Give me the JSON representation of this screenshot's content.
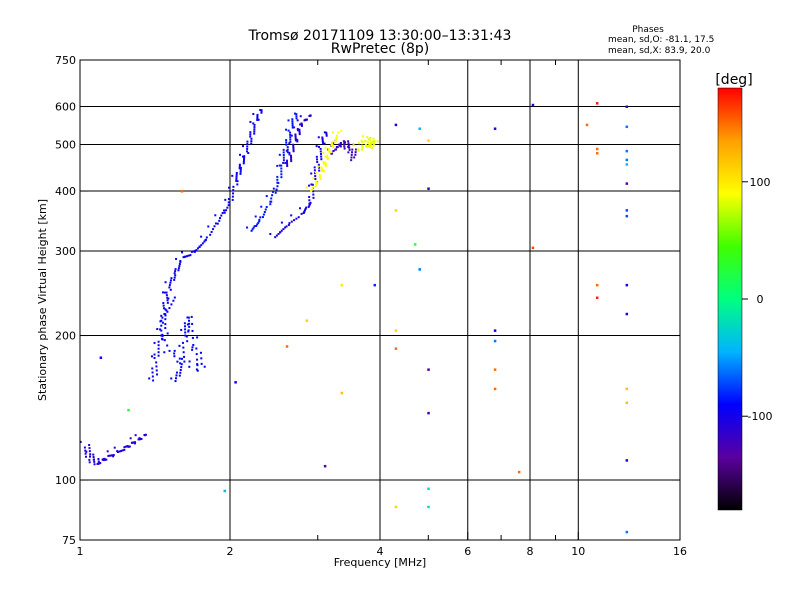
{
  "chart_data": {
    "type": "scatter",
    "title": "Tromsø 20171109 13:30:00–13:31:43",
    "subtitle": "RwPretec (8p)",
    "phase_header": "Phases",
    "phase_stats": [
      "mean, sd,O:  -81.1, 17.5",
      "mean, sd,X:  83.9, 20.0"
    ],
    "xlabel": "Frequency [MHz]",
    "ylabel": "Stationary phase Virtual Height [km]",
    "x_scale": "log",
    "y_scale": "log",
    "xlim": [
      1,
      16
    ],
    "ylim": [
      75,
      750
    ],
    "x_ticks": [
      1,
      2,
      4,
      6,
      8,
      10,
      16
    ],
    "y_ticks": [
      75,
      100,
      200,
      300,
      400,
      500,
      600,
      750
    ],
    "grid_x_major": [
      2,
      4,
      6,
      8,
      10
    ],
    "grid_x_minor": [
      3,
      5,
      7,
      9
    ],
    "grid_y": [
      100,
      200,
      300,
      400,
      500,
      600
    ],
    "colorbar": {
      "label": "[deg]",
      "ticks": [
        100,
        0,
        -100
      ],
      "range": [
        -180,
        180
      ],
      "colors": [
        "#000000",
        "#5a00a0",
        "#0000ff",
        "#00b4ff",
        "#00ff80",
        "#40ff00",
        "#ffff00",
        "#ffa000",
        "#ff0000"
      ]
    },
    "traces": [
      {
        "phase": -105,
        "points": [
          [
            1.02,
            118
          ],
          [
            1.05,
            112
          ],
          [
            1.08,
            108
          ],
          [
            1.12,
            111
          ],
          [
            1.18,
            114
          ],
          [
            1.25,
            118
          ],
          [
            1.3,
            121
          ],
          [
            1.35,
            124
          ]
        ]
      },
      {
        "phase": -95,
        "points": [
          [
            1.4,
            160
          ],
          [
            1.42,
            180
          ],
          [
            1.45,
            200
          ],
          [
            1.48,
            230
          ],
          [
            1.5,
            250
          ],
          [
            1.55,
            270
          ],
          [
            1.6,
            290
          ],
          [
            1.7,
            300
          ],
          [
            1.8,
            320
          ],
          [
            1.9,
            350
          ],
          [
            2.0,
            380
          ],
          [
            2.05,
            420
          ],
          [
            2.1,
            450
          ],
          [
            2.15,
            480
          ],
          [
            2.2,
            520
          ],
          [
            2.25,
            560
          ],
          [
            2.3,
            590
          ]
        ]
      },
      {
        "phase": -90,
        "points": [
          [
            1.55,
            160
          ],
          [
            1.6,
            175
          ],
          [
            1.62,
            200
          ],
          [
            1.65,
            220
          ],
          [
            1.7,
            190
          ],
          [
            1.75,
            170
          ],
          [
            1.5,
            185
          ],
          [
            1.45,
            215
          ],
          [
            1.55,
            240
          ]
        ]
      },
      {
        "phase": -85,
        "points": [
          [
            2.2,
            330
          ],
          [
            2.3,
            350
          ],
          [
            2.4,
            380
          ],
          [
            2.5,
            420
          ],
          [
            2.55,
            460
          ],
          [
            2.6,
            500
          ],
          [
            2.65,
            540
          ],
          [
            2.7,
            580
          ]
        ]
      },
      {
        "phase": -100,
        "points": [
          [
            2.45,
            320
          ],
          [
            2.6,
            340
          ],
          [
            2.8,
            360
          ],
          [
            2.9,
            380
          ],
          [
            2.95,
            420
          ],
          [
            3.0,
            460
          ],
          [
            3.05,
            500
          ],
          [
            3.1,
            530
          ]
        ]
      },
      {
        "phase": -110,
        "points": [
          [
            2.6,
            450
          ],
          [
            2.65,
            480
          ],
          [
            2.7,
            510
          ],
          [
            2.75,
            540
          ],
          [
            2.8,
            560
          ],
          [
            2.9,
            575
          ]
        ]
      },
      {
        "phase": -120,
        "points": [
          [
            3.2,
            480
          ],
          [
            3.25,
            490
          ],
          [
            3.3,
            500
          ],
          [
            3.4,
            505
          ],
          [
            3.5,
            490
          ],
          [
            3.55,
            470
          ]
        ]
      },
      {
        "phase": 90,
        "points": [
          [
            2.9,
            400
          ],
          [
            3.0,
            420
          ],
          [
            3.05,
            440
          ],
          [
            3.1,
            460
          ],
          [
            3.15,
            480
          ],
          [
            3.2,
            500
          ],
          [
            3.3,
            530
          ]
        ]
      },
      {
        "phase": 85,
        "points": [
          [
            3.6,
            490
          ],
          [
            3.7,
            495
          ],
          [
            3.8,
            500
          ],
          [
            3.85,
            505
          ],
          [
            3.9,
            500
          ],
          [
            3.7,
            520
          ]
        ]
      }
    ],
    "isolated_points": [
      {
        "x": 1.1,
        "y": 180,
        "phase": -100
      },
      {
        "x": 1.25,
        "y": 140,
        "phase": 20
      },
      {
        "x": 1.6,
        "y": 400,
        "phase": 150
      },
      {
        "x": 1.95,
        "y": 95,
        "phase": -40
      },
      {
        "x": 2.05,
        "y": 160,
        "phase": -100
      },
      {
        "x": 2.6,
        "y": 190,
        "phase": 150
      },
      {
        "x": 2.85,
        "y": 215,
        "phase": 110
      },
      {
        "x": 3.1,
        "y": 107,
        "phase": -130
      },
      {
        "x": 3.35,
        "y": 152,
        "phase": 120
      },
      {
        "x": 3.35,
        "y": 255,
        "phase": 100
      },
      {
        "x": 3.9,
        "y": 255,
        "phase": -80
      },
      {
        "x": 4.3,
        "y": 550,
        "phase": -110
      },
      {
        "x": 4.3,
        "y": 365,
        "phase": 110
      },
      {
        "x": 4.3,
        "y": 205,
        "phase": 110
      },
      {
        "x": 4.3,
        "y": 188,
        "phase": 150
      },
      {
        "x": 4.3,
        "y": 88,
        "phase": 110
      },
      {
        "x": 4.7,
        "y": 310,
        "phase": 30
      },
      {
        "x": 4.8,
        "y": 275,
        "phase": -60
      },
      {
        "x": 4.8,
        "y": 540,
        "phase": -40
      },
      {
        "x": 5.0,
        "y": 510,
        "phase": 110
      },
      {
        "x": 5.0,
        "y": 405,
        "phase": -110
      },
      {
        "x": 5.0,
        "y": 170,
        "phase": -130
      },
      {
        "x": 5.0,
        "y": 138,
        "phase": -120
      },
      {
        "x": 5.0,
        "y": 96,
        "phase": -20
      },
      {
        "x": 5.0,
        "y": 88,
        "phase": -20
      },
      {
        "x": 6.8,
        "y": 540,
        "phase": -110
      },
      {
        "x": 6.8,
        "y": 205,
        "phase": -100
      },
      {
        "x": 6.8,
        "y": 195,
        "phase": -60
      },
      {
        "x": 6.8,
        "y": 170,
        "phase": 150
      },
      {
        "x": 6.8,
        "y": 155,
        "phase": 150
      },
      {
        "x": 7.6,
        "y": 104,
        "phase": 150
      },
      {
        "x": 8.1,
        "y": 605,
        "phase": -110
      },
      {
        "x": 8.1,
        "y": 305,
        "phase": 160
      },
      {
        "x": 10.4,
        "y": 550,
        "phase": 150
      },
      {
        "x": 10.9,
        "y": 610,
        "phase": 175
      },
      {
        "x": 10.9,
        "y": 490,
        "phase": 150
      },
      {
        "x": 10.9,
        "y": 480,
        "phase": 150
      },
      {
        "x": 10.9,
        "y": 255,
        "phase": 150
      },
      {
        "x": 10.9,
        "y": 240,
        "phase": 170
      },
      {
        "x": 12.5,
        "y": 600,
        "phase": -110
      },
      {
        "x": 12.5,
        "y": 545,
        "phase": -60
      },
      {
        "x": 12.5,
        "y": 485,
        "phase": -60
      },
      {
        "x": 12.5,
        "y": 465,
        "phase": -60
      },
      {
        "x": 12.5,
        "y": 455,
        "phase": -40
      },
      {
        "x": 12.5,
        "y": 415,
        "phase": -130
      },
      {
        "x": 12.5,
        "y": 365,
        "phase": -70
      },
      {
        "x": 12.5,
        "y": 355,
        "phase": -70
      },
      {
        "x": 12.5,
        "y": 255,
        "phase": -100
      },
      {
        "x": 12.5,
        "y": 222,
        "phase": -100
      },
      {
        "x": 12.5,
        "y": 155,
        "phase": 120
      },
      {
        "x": 12.5,
        "y": 145,
        "phase": 120
      },
      {
        "x": 12.5,
        "y": 110,
        "phase": -100
      },
      {
        "x": 12.5,
        "y": 78,
        "phase": -60
      }
    ]
  }
}
